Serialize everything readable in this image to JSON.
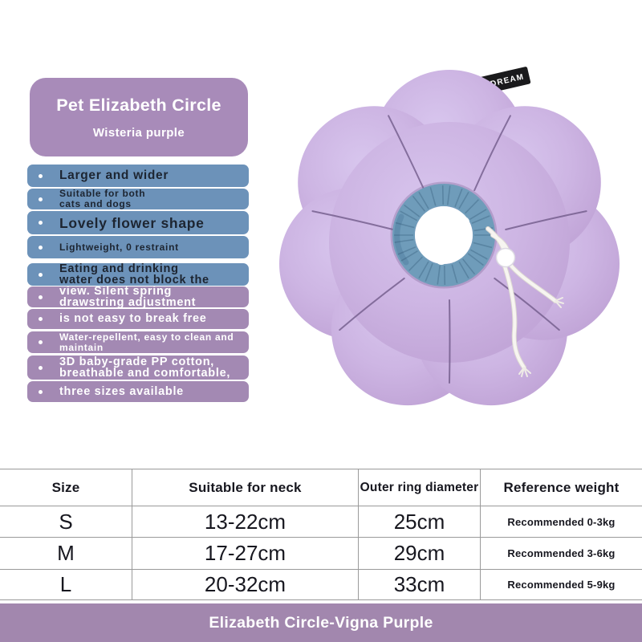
{
  "title_card": {
    "line1": "Pet Elizabeth Circle",
    "line2": "Wisteria purple"
  },
  "features": [
    {
      "lines": [
        "Larger and wider"
      ],
      "theme": "blue",
      "size": "lg"
    },
    {
      "lines": [
        "Suitable for both",
        "cats and dogs"
      ],
      "theme": "blue",
      "size": "sm"
    },
    {
      "lines": [
        "Lovely flower shape"
      ],
      "theme": "blue",
      "size": "xl"
    },
    {
      "lines": [
        "Lightweight, 0 restraint"
      ],
      "theme": "blue",
      "size": "sm"
    },
    {
      "lines": [
        "Eating and drinking",
        "water does not block the"
      ],
      "theme": "blue",
      "size": "md"
    },
    {
      "lines": [
        "view. Silent spring",
        "drawstring adjustment"
      ],
      "theme": "purple",
      "size": "md"
    },
    {
      "lines": [
        "is not easy to break free"
      ],
      "theme": "purple",
      "size": "md"
    },
    {
      "lines": [
        "Water-repellent, easy to clean and",
        "maintain"
      ],
      "theme": "purple",
      "size": "sm"
    },
    {
      "lines": [
        "3D baby-grade PP cotton,",
        "breathable and comfortable,"
      ],
      "theme": "purple",
      "size": "md"
    },
    {
      "lines": [
        "three sizes available"
      ],
      "theme": "purple",
      "size": "md"
    }
  ],
  "product_image": {
    "tag_label": "HiDREAM"
  },
  "size_table": {
    "headers": [
      "Size",
      "Suitable for neck",
      "Outer ring diameter",
      "Reference weight"
    ],
    "rows": [
      [
        "S",
        "13-22cm",
        "25cm",
        "Recommended 0-3kg"
      ],
      [
        "M",
        "17-27cm",
        "29cm",
        "Recommended 3-6kg"
      ],
      [
        "L",
        "20-32cm",
        "33cm",
        "Recommended 5-9kg"
      ]
    ]
  },
  "footer_bar": {
    "label": "Elizabeth Circle-Vigna Purple"
  },
  "colors": {
    "title_card_bg": "#a88bb9",
    "feature_blue": "#6c92b9",
    "feature_purple": "#a389b3",
    "feature_dark_text": "#1d2531",
    "petal_light": "#d6c2ec",
    "petal_base": "#c7addd",
    "crease": "#6b5584",
    "ring_blue": "#6f9cba",
    "ring_shadow": "#4e7d9e",
    "cord_white": "#f7f5f1",
    "tag_black": "#1a1a1c",
    "footer_bg": "#a287ae",
    "table_line": "#9a9a9a"
  }
}
